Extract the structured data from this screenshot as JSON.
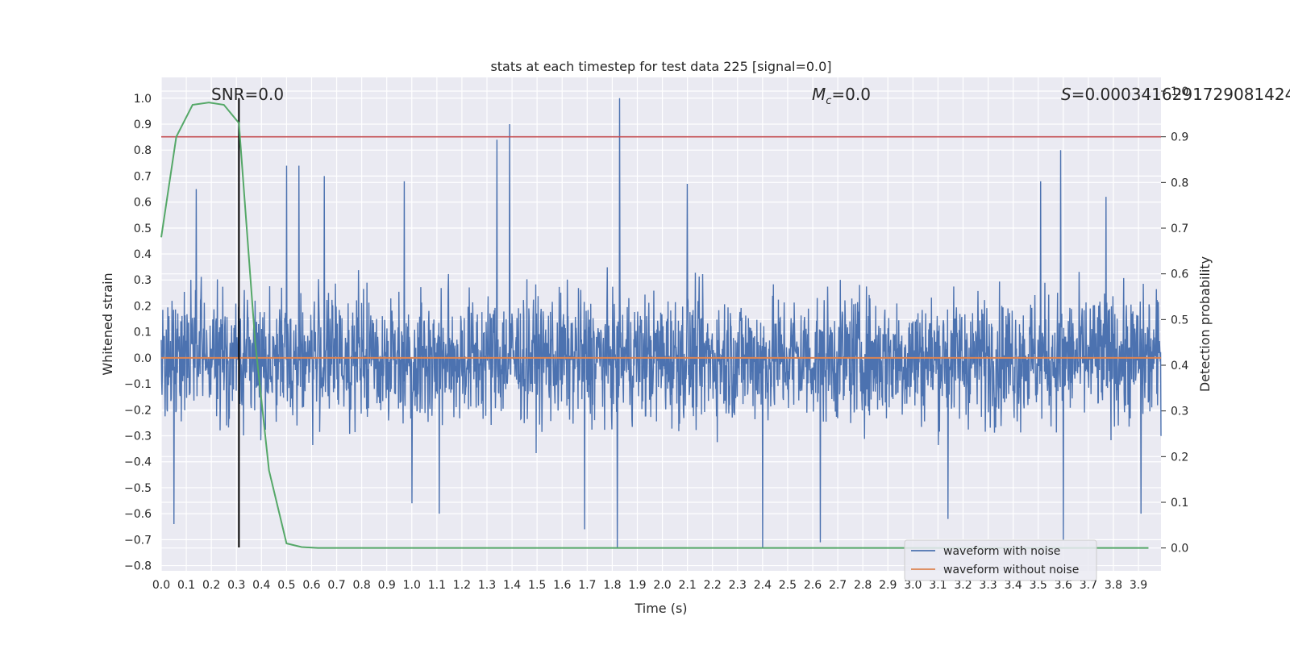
{
  "chart_data": {
    "type": "line",
    "title": "stats at each timestep for test data 225 [signal=0.0]",
    "xlabel": "Time (s)",
    "ylabel": "Whitened strain",
    "y2label": "Detection probability",
    "xlim": [
      0.0,
      3.99
    ],
    "ylim": [
      -0.82,
      1.08
    ],
    "y2lim": [
      -0.05,
      1.03
    ],
    "x_ticks": [
      "0.0",
      "0.1",
      "0.2",
      "0.3",
      "0.4",
      "0.5",
      "0.6",
      "0.7",
      "0.8",
      "0.9",
      "1.0",
      "1.1",
      "1.2",
      "1.3",
      "1.4",
      "1.5",
      "1.6",
      "1.7",
      "1.8",
      "1.9",
      "2.0",
      "2.1",
      "2.2",
      "2.3",
      "2.4",
      "2.5",
      "2.6",
      "2.7",
      "2.8",
      "2.9",
      "3.0",
      "3.1",
      "3.2",
      "3.3",
      "3.4",
      "3.5",
      "3.6",
      "3.7",
      "3.8",
      "3.9"
    ],
    "y_ticks": [
      "−0.8",
      "−0.7",
      "−0.6",
      "−0.5",
      "−0.4",
      "−0.3",
      "−0.2",
      "−0.1",
      "0.0",
      "0.1",
      "0.2",
      "0.3",
      "0.4",
      "0.5",
      "0.6",
      "0.7",
      "0.8",
      "0.9",
      "1.0"
    ],
    "y2_ticks": [
      "0.0",
      "0.1",
      "0.2",
      "0.3",
      "0.4",
      "0.5",
      "0.6",
      "0.7",
      "0.8",
      "0.9",
      "1.0"
    ],
    "grid": true,
    "legend_position": "bottom-right",
    "series": [
      {
        "name": "waveform with noise",
        "color": "#4c72b0",
        "description_values": "dense noise approx ±0.3, peaks to 1.0 at 1.83, -0.73 at 1.82",
        "noise_amplitude": 0.3,
        "peaks": [
          {
            "x": 0.05,
            "y": -0.64
          },
          {
            "x": 0.14,
            "y": 0.65
          },
          {
            "x": 0.5,
            "y": 0.74
          },
          {
            "x": 0.55,
            "y": 0.74
          },
          {
            "x": 0.65,
            "y": 0.7
          },
          {
            "x": 0.97,
            "y": 0.68
          },
          {
            "x": 1.0,
            "y": -0.56
          },
          {
            "x": 1.11,
            "y": -0.6
          },
          {
            "x": 1.34,
            "y": 0.84
          },
          {
            "x": 1.39,
            "y": 0.9
          },
          {
            "x": 1.69,
            "y": -0.66
          },
          {
            "x": 1.82,
            "y": -0.73
          },
          {
            "x": 1.83,
            "y": 1.0
          },
          {
            "x": 2.1,
            "y": 0.67
          },
          {
            "x": 2.4,
            "y": -0.73
          },
          {
            "x": 2.63,
            "y": -0.71
          },
          {
            "x": 3.14,
            "y": -0.62
          },
          {
            "x": 3.51,
            "y": 0.68
          },
          {
            "x": 3.59,
            "y": 0.8
          },
          {
            "x": 3.6,
            "y": -0.7
          },
          {
            "x": 3.77,
            "y": 0.62
          },
          {
            "x": 3.91,
            "y": -0.6
          }
        ]
      },
      {
        "name": "waveform without noise",
        "color": "#dd8452",
        "x": [
          0.0,
          3.99
        ],
        "y": [
          0.0,
          0.0
        ]
      }
    ],
    "probability_series": {
      "color": "#55a868",
      "x": [
        0.0,
        0.06,
        0.125,
        0.19,
        0.25,
        0.31,
        0.375,
        0.43,
        0.5,
        0.56,
        0.625,
        0.69,
        1.0,
        1.5,
        2.0,
        2.5,
        3.0,
        3.5,
        3.94
      ],
      "y": [
        0.68,
        0.9,
        0.97,
        0.975,
        0.97,
        0.93,
        0.45,
        0.17,
        0.01,
        0.002,
        0.0,
        0.0,
        0.0,
        0.0,
        0.0,
        0.0,
        0.0,
        0.0,
        0.0
      ]
    },
    "threshold_line": {
      "y2": 0.9,
      "color": "#c44e52"
    },
    "vertical_marker": {
      "x": 0.31,
      "y_from": 1.0,
      "y_to": -0.73,
      "color": "#000000"
    },
    "annotations": {
      "snr": "SNR=0.0",
      "mc_symbol": "M",
      "mc_sub": "c",
      "mc_value": "=0.0",
      "s_symbol": "S",
      "s_value": "=0.0003416291729081424"
    }
  }
}
